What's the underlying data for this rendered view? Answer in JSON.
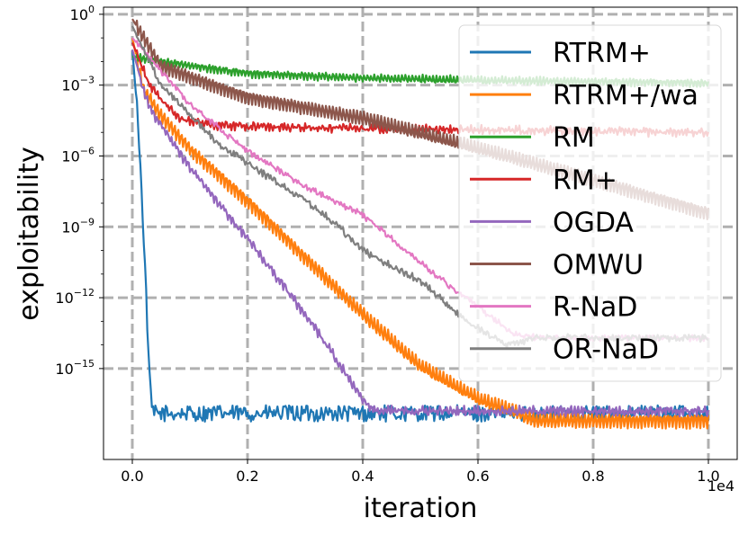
{
  "chart_data": {
    "type": "line",
    "title": "",
    "xlabel": "iteration",
    "ylabel": "exploitability",
    "x_scale_label": "1e4",
    "x_scale": "linear",
    "y_scale": "log10",
    "xlim": [
      -0.05,
      1.05
    ],
    "ylim_log10": [
      -18.85,
      0.3
    ],
    "x_ticks": [
      0.0,
      0.2,
      0.4,
      0.6,
      0.8,
      1.0
    ],
    "x_tick_labels": [
      "0.0",
      "0.2",
      "0.4",
      "0.6",
      "0.8",
      "1.0"
    ],
    "y_ticks_log10": [
      0,
      -3,
      -6,
      -9,
      -12,
      -15
    ],
    "y_tick_labels": [
      {
        "base": "10",
        "exp": "0"
      },
      {
        "base": "10",
        "exp": "−3"
      },
      {
        "base": "10",
        "exp": "−6"
      },
      {
        "base": "10",
        "exp": "−9"
      },
      {
        "base": "10",
        "exp": "−12"
      },
      {
        "base": "10",
        "exp": "−15"
      }
    ],
    "grid": true,
    "legend_position": "upper-right",
    "series": [
      {
        "name": "RTRM+",
        "color": "#1f77b4",
        "log10_points": [
          [
            0.0,
            -1.5
          ],
          [
            0.01,
            -4.5
          ],
          [
            0.02,
            -9.5
          ],
          [
            0.03,
            -15.5
          ],
          [
            0.035,
            -16.9
          ],
          [
            1.0,
            -16.9
          ]
        ],
        "noise": 0.35,
        "osc": 0
      },
      {
        "name": "RTRM+/wa",
        "color": "#ff7f0e",
        "log10_points": [
          [
            0.0,
            -1.0
          ],
          [
            0.02,
            -3.2
          ],
          [
            0.05,
            -4.3
          ],
          [
            0.1,
            -5.7
          ],
          [
            0.2,
            -7.9
          ],
          [
            0.3,
            -10.3
          ],
          [
            0.4,
            -12.7
          ],
          [
            0.5,
            -14.9
          ],
          [
            0.6,
            -16.3
          ],
          [
            0.66,
            -16.8
          ],
          [
            0.7,
            -17.2
          ],
          [
            1.0,
            -17.2
          ]
        ],
        "noise": 0.05,
        "osc": 0.3
      },
      {
        "name": "RM",
        "color": "#2ca02c",
        "log10_points": [
          [
            0.0,
            -1.8
          ],
          [
            0.05,
            -2.0
          ],
          [
            0.2,
            -2.5
          ],
          [
            0.4,
            -2.7
          ],
          [
            0.6,
            -2.8
          ],
          [
            1.0,
            -2.9
          ]
        ],
        "noise": 0.05,
        "osc": 0.15
      },
      {
        "name": "RM+",
        "color": "#d62728",
        "log10_points": [
          [
            0.0,
            -1.2
          ],
          [
            0.03,
            -3.0
          ],
          [
            0.08,
            -4.4
          ],
          [
            0.15,
            -4.7
          ],
          [
            0.3,
            -4.8
          ],
          [
            0.6,
            -4.9
          ],
          [
            1.0,
            -5.0
          ]
        ],
        "noise": 0.12,
        "osc": 0.1
      },
      {
        "name": "OGDA",
        "color": "#9467bd",
        "log10_points": [
          [
            0.0,
            -1.5
          ],
          [
            0.03,
            -4.0
          ],
          [
            0.1,
            -6.5
          ],
          [
            0.2,
            -9.5
          ],
          [
            0.3,
            -12.7
          ],
          [
            0.36,
            -14.8
          ],
          [
            0.4,
            -16.3
          ],
          [
            0.42,
            -16.8
          ],
          [
            1.0,
            -16.8
          ]
        ],
        "noise": 0.12,
        "osc": 0.12
      },
      {
        "name": "OMWU",
        "color": "#8c564b",
        "log10_points": [
          [
            0.0,
            -0.2
          ],
          [
            0.05,
            -2.2
          ],
          [
            0.2,
            -3.5
          ],
          [
            0.4,
            -4.4
          ],
          [
            0.6,
            -5.7
          ],
          [
            0.8,
            -7.0
          ],
          [
            1.0,
            -8.4
          ]
        ],
        "noise": 0.03,
        "osc": 0.3
      },
      {
        "name": "R-NaD",
        "color": "#e377c2",
        "log10_points": [
          [
            0.0,
            -1.0
          ],
          [
            0.1,
            -3.8
          ],
          [
            0.2,
            -5.8
          ],
          [
            0.3,
            -7.3
          ],
          [
            0.4,
            -8.5
          ],
          [
            0.5,
            -10.5
          ],
          [
            0.55,
            -11.5
          ],
          [
            0.6,
            -12.4
          ],
          [
            0.66,
            -13.5
          ],
          [
            0.7,
            -13.7
          ],
          [
            1.0,
            -13.7
          ]
        ],
        "noise": 0.1,
        "osc": 0.05
      },
      {
        "name": "OR-NaD",
        "color": "#7f7f7f",
        "log10_points": [
          [
            0.0,
            -0.5
          ],
          [
            0.05,
            -3.0
          ],
          [
            0.15,
            -5.5
          ],
          [
            0.3,
            -7.9
          ],
          [
            0.35,
            -8.8
          ],
          [
            0.4,
            -10.0
          ],
          [
            0.5,
            -11.3
          ],
          [
            0.58,
            -13.0
          ],
          [
            0.65,
            -14.0
          ],
          [
            0.7,
            -13.7
          ],
          [
            1.0,
            -13.7
          ]
        ],
        "noise": 0.12,
        "osc": 0.05
      }
    ]
  }
}
